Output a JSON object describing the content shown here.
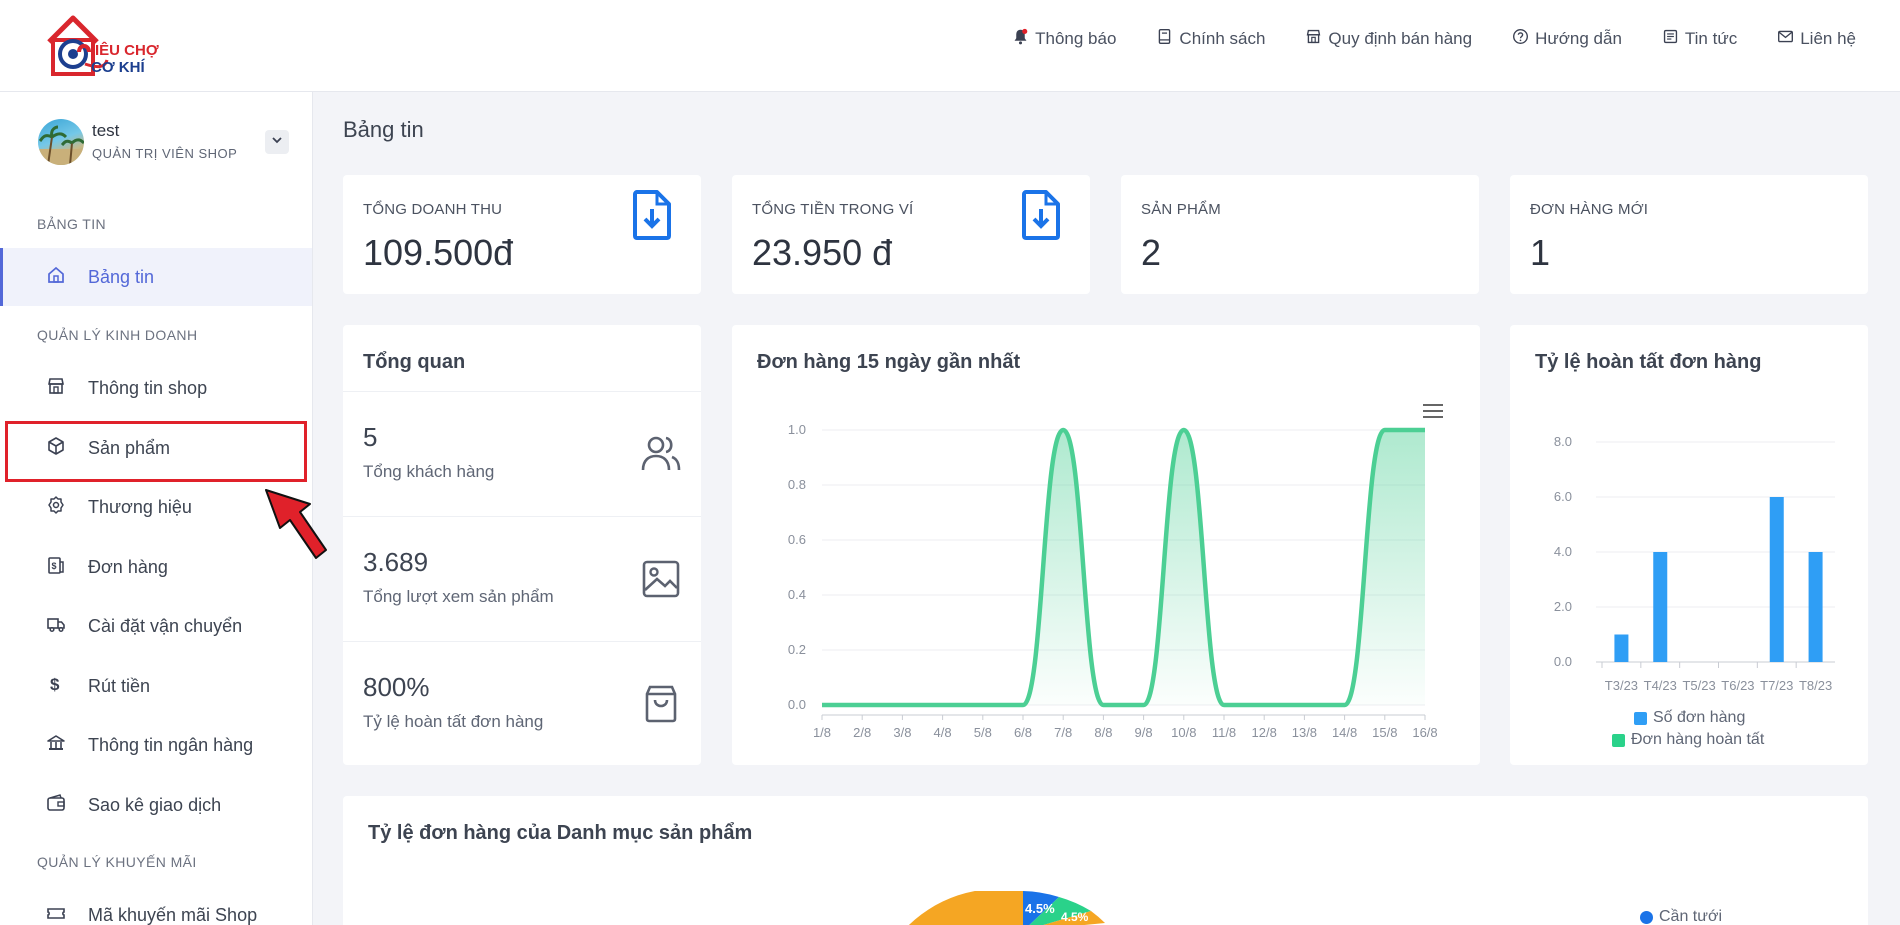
{
  "header": {
    "logo_line1": "IÊU CHỢ",
    "logo_line2": "CƠ KHÍ",
    "nav": [
      {
        "label": "Thông báo",
        "icon": "bell-icon"
      },
      {
        "label": "Chính sách",
        "icon": "book-icon"
      },
      {
        "label": "Quy định bán hàng",
        "icon": "store-icon"
      },
      {
        "label": "Hướng dẫn",
        "icon": "question-icon"
      },
      {
        "label": "Tin tức",
        "icon": "news-icon"
      },
      {
        "label": "Liên hệ",
        "icon": "mail-icon"
      }
    ]
  },
  "user": {
    "name": "test",
    "role": "QUẢN TRỊ VIÊN SHOP"
  },
  "sidebar": {
    "sections": [
      "BẢNG TIN",
      "QUẢN LÝ KINH DOANH",
      "QUẢN LÝ KHUYẾN MÃI"
    ],
    "items": [
      {
        "label": "Bảng tin",
        "icon": "home-icon"
      },
      {
        "label": "Thông tin shop",
        "icon": "shop-icon"
      },
      {
        "label": "Sản phẩm",
        "icon": "box-icon"
      },
      {
        "label": "Thương hiệu",
        "icon": "badge-icon"
      },
      {
        "label": "Đơn hàng",
        "icon": "invoice-icon"
      },
      {
        "label": "Cài đặt vận chuyển",
        "icon": "truck-icon"
      },
      {
        "label": "Rút tiền",
        "icon": "dollar-icon"
      },
      {
        "label": "Thông tin ngân hàng",
        "icon": "bank-icon"
      },
      {
        "label": "Sao kê giao dịch",
        "icon": "wallet-icon"
      },
      {
        "label": "Mã khuyến mãi Shop",
        "icon": "ticket-icon"
      }
    ]
  },
  "page": {
    "title": "Bảng tin"
  },
  "stats": [
    {
      "label": "TỔNG DOANH THU",
      "value": "109.500đ"
    },
    {
      "label": "TỔNG TIỀN TRONG VÍ",
      "value": "23.950 đ"
    },
    {
      "label": "SẢN PHẨM",
      "value": "2"
    },
    {
      "label": "ĐƠN HÀNG MỚI",
      "value": "1"
    }
  ],
  "overview": {
    "title": "Tổng quan",
    "rows": [
      {
        "value": "5",
        "label": "Tổng khách hàng",
        "icon": "users-icon"
      },
      {
        "value": "3.689",
        "label": "Tổng lượt xem sản phẩm",
        "icon": "image-icon"
      },
      {
        "value": "800%",
        "label": "Tỷ lệ hoàn tất đơn hàng",
        "icon": "bag-icon"
      }
    ]
  },
  "line_title": "Đơn hàng 15 ngày gần nhất",
  "bar_title": "Tỷ lệ hoàn tất đơn hàng",
  "pie": {
    "title": "Tỷ lệ đơn hàng của Danh mục sản phẩm",
    "labels": [
      "4.5%",
      "4.5%"
    ],
    "legend": "Cần tưới"
  },
  "colors": {
    "accent": "#5368d8",
    "line": "#4ccf94",
    "bar_blue": "#2f9ef5",
    "bar_green": "#2ad28a",
    "icon_blue": "#1a73e8",
    "highlight": "#e0212a"
  },
  "chart_data": [
    {
      "type": "area",
      "title": "Đơn hàng 15 ngày gần nhất",
      "categories": [
        "1/8",
        "2/8",
        "3/8",
        "4/8",
        "5/8",
        "6/8",
        "7/8",
        "8/8",
        "9/8",
        "10/8",
        "11/8",
        "12/8",
        "13/8",
        "14/8",
        "15/8",
        "16/8"
      ],
      "values": [
        0,
        0,
        0,
        0,
        0,
        0,
        1,
        0,
        0,
        1,
        0,
        0,
        0,
        0,
        1,
        1
      ],
      "ylim": [
        0,
        1
      ],
      "yticks": [
        "0.0",
        "0.2",
        "0.4",
        "0.6",
        "0.8",
        "1.0"
      ]
    },
    {
      "type": "bar",
      "title": "Tỷ lệ hoàn tất đơn hàng",
      "categories": [
        "T3/23",
        "T4/23",
        "T5/23",
        "T6/23",
        "T7/23",
        "T8/23"
      ],
      "series": [
        {
          "name": "Số đơn hàng",
          "values": [
            1,
            4,
            0,
            0,
            6,
            4
          ]
        },
        {
          "name": "Đơn hàng hoàn tất",
          "values": [
            0,
            0,
            0,
            0,
            0,
            0
          ]
        }
      ],
      "ylim": [
        0,
        8
      ],
      "yticks": [
        "0.0",
        "2.0",
        "4.0",
        "6.0",
        "8.0"
      ]
    }
  ]
}
